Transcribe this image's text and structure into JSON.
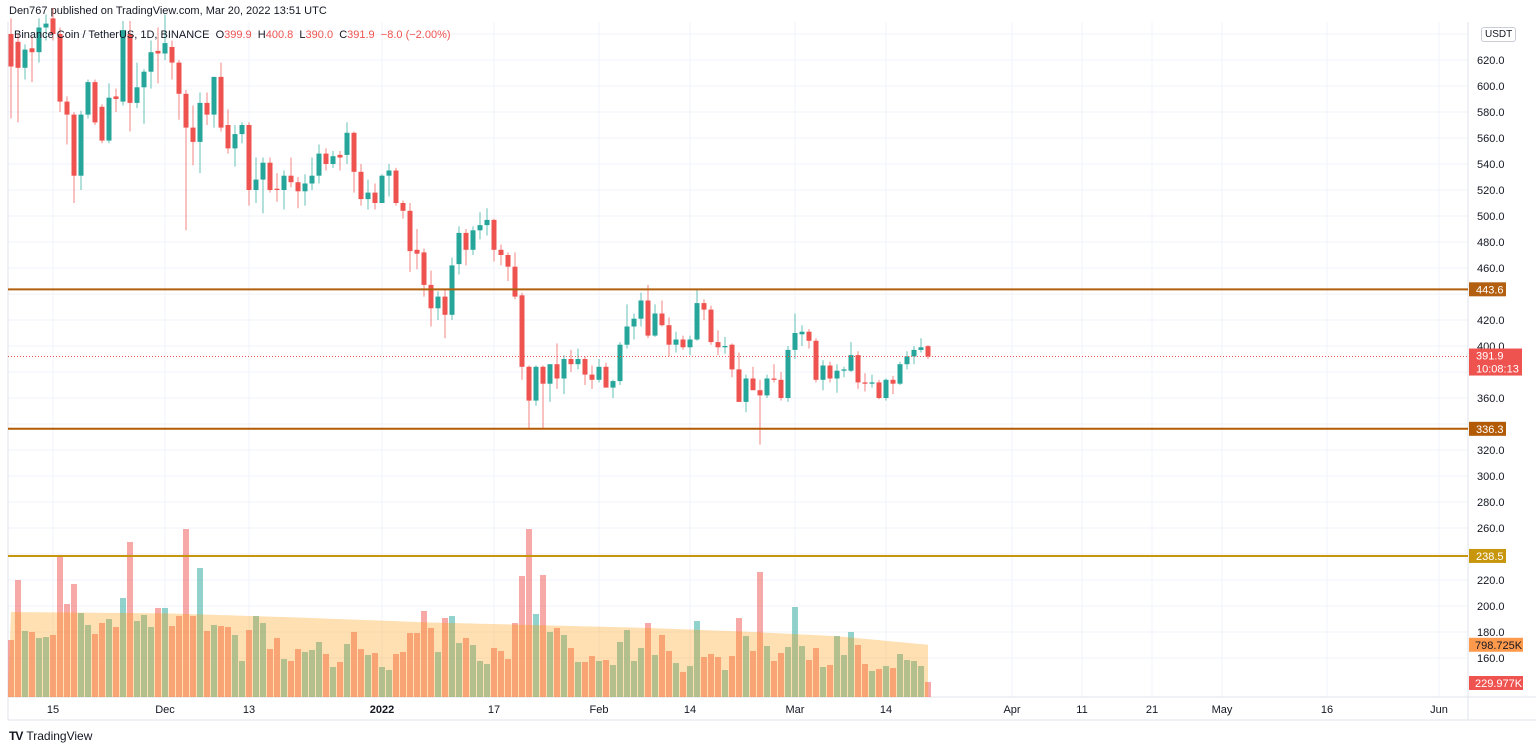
{
  "header": {
    "publisher_line": "Den767 published on TradingView.com, Mar 20, 2022 13:51 UTC",
    "symbol": "Binance Coin / TetherUS, 1D, BINANCE",
    "open_label": "O",
    "open": "399.9",
    "high_label": "H",
    "high": "400.8",
    "low_label": "L",
    "low": "390.0",
    "close_label": "C",
    "close": "391.9",
    "change": "−8.0 (−2.00%)"
  },
  "currency_badge": "USDT",
  "footer": {
    "brand": "TradingView",
    "logo": "TV"
  },
  "colors": {
    "up": "#26a69a",
    "down": "#ef5350",
    "level_443": "#b2600f",
    "level_336": "#b35a05",
    "level_238": "#c8960c",
    "volume_ma": "#ff9a4d"
  },
  "chart_data": {
    "type": "candlestick",
    "title": "Binance Coin / TetherUS, 1D, BINANCE",
    "first_date": "2021-11-09",
    "last_date": "2022-03-20",
    "ylim": [
      140,
      650
    ],
    "price_ticks": [
      "620.0",
      "600.0",
      "580.0",
      "560.0",
      "540.0",
      "520.0",
      "500.0",
      "480.0",
      "460.0",
      "420.0",
      "400.0",
      "360.0",
      "320.0",
      "300.0",
      "280.0",
      "260.0",
      "220.0",
      "200.0",
      "180.0",
      "160.0"
    ],
    "time_ticks": [
      {
        "label": "15",
        "day": 6
      },
      {
        "label": "Dec",
        "day": 22
      },
      {
        "label": "13",
        "day": 34
      },
      {
        "label": "2022",
        "day": 53,
        "bold": true
      },
      {
        "label": "17",
        "day": 69
      },
      {
        "label": "Feb",
        "day": 84
      },
      {
        "label": "14",
        "day": 97
      },
      {
        "label": "Mar",
        "day": 112
      },
      {
        "label": "14",
        "day": 125
      },
      {
        "label": "Apr",
        "day": 143
      },
      {
        "label": "11",
        "day": 153
      },
      {
        "label": "21",
        "day": 163
      },
      {
        "label": "May",
        "day": 173
      },
      {
        "label": "16",
        "day": 188
      },
      {
        "label": "Jun",
        "day": 204
      }
    ],
    "horizontal_levels": [
      {
        "label": "443.6",
        "price": 443.6,
        "color_key": "level_443"
      },
      {
        "label": "336.3",
        "price": 336.3,
        "color_key": "level_336"
      },
      {
        "label": "238.5",
        "price": 238.5,
        "color_key": "level_238"
      }
    ],
    "last_price": {
      "label": "391.9",
      "price": 391.9,
      "countdown": "10:08:13"
    },
    "volume_labels": {
      "ma": "798.725K",
      "last": "229.977K"
    },
    "ohlc": [
      [
        640,
        652,
        575,
        615
      ],
      [
        634,
        640,
        572,
        614
      ],
      [
        614,
        632,
        605,
        628
      ],
      [
        629,
        638,
        603,
        626
      ],
      [
        626,
        652,
        618,
        645
      ],
      [
        645,
        655,
        635,
        648
      ],
      [
        652,
        660,
        635,
        640
      ],
      [
        640,
        645,
        580,
        588
      ],
      [
        588,
        592,
        555,
        578
      ],
      [
        578,
        580,
        510,
        531
      ],
      [
        531,
        581,
        520,
        578
      ],
      [
        578,
        605,
        575,
        603
      ],
      [
        603,
        605,
        570,
        572
      ],
      [
        584,
        586,
        556,
        558
      ],
      [
        558,
        602,
        556,
        591
      ],
      [
        592,
        598,
        580,
        590
      ],
      [
        588,
        650,
        585,
        643
      ],
      [
        640,
        650,
        565,
        587
      ],
      [
        587,
        618,
        583,
        599
      ],
      [
        599,
        613,
        571,
        611
      ],
      [
        611,
        635,
        598,
        626
      ],
      [
        627,
        645,
        602,
        625
      ],
      [
        625,
        655,
        620,
        633
      ],
      [
        630,
        635,
        605,
        618
      ],
      [
        618,
        620,
        574,
        594
      ],
      [
        594,
        597,
        489,
        568
      ],
      [
        568,
        585,
        539,
        557
      ],
      [
        557,
        595,
        533,
        587
      ],
      [
        587,
        595,
        570,
        578
      ],
      [
        578,
        607,
        568,
        607
      ],
      [
        607,
        618,
        565,
        568
      ],
      [
        570,
        582,
        548,
        552
      ],
      [
        552,
        570,
        538,
        563
      ],
      [
        563,
        572,
        556,
        570
      ],
      [
        570,
        572,
        508,
        520
      ],
      [
        520,
        545,
        510,
        528
      ],
      [
        528,
        545,
        502,
        541
      ],
      [
        541,
        545,
        518,
        520
      ],
      [
        521,
        533,
        511,
        520
      ],
      [
        520,
        535,
        505,
        531
      ],
      [
        531,
        545,
        522,
        526
      ],
      [
        526,
        530,
        506,
        519
      ],
      [
        519,
        532,
        508,
        525
      ],
      [
        525,
        545,
        520,
        531
      ],
      [
        531,
        555,
        525,
        548
      ],
      [
        548,
        552,
        535,
        540
      ],
      [
        540,
        550,
        537,
        546
      ],
      [
        547,
        550,
        535,
        545
      ],
      [
        547,
        572,
        540,
        564
      ],
      [
        564,
        565,
        518,
        534
      ],
      [
        534,
        540,
        508,
        513
      ],
      [
        513,
        528,
        505,
        518
      ],
      [
        518,
        525,
        505,
        510
      ],
      [
        510,
        532,
        510,
        531
      ],
      [
        531,
        540,
        515,
        535
      ],
      [
        535,
        537,
        508,
        510
      ],
      [
        510,
        512,
        498,
        504
      ],
      [
        504,
        510,
        457,
        473
      ],
      [
        474,
        490,
        459,
        471
      ],
      [
        472,
        475,
        438,
        447
      ],
      [
        447,
        458,
        415,
        429
      ],
      [
        429,
        442,
        420,
        438
      ],
      [
        438,
        443,
        406,
        424
      ],
      [
        424,
        468,
        420,
        462
      ],
      [
        463,
        492,
        455,
        487
      ],
      [
        487,
        490,
        462,
        474
      ],
      [
        474,
        492,
        470,
        489
      ],
      [
        489,
        503,
        482,
        493
      ],
      [
        493,
        506,
        485,
        497
      ],
      [
        497,
        498,
        465,
        474
      ],
      [
        474,
        478,
        462,
        470
      ],
      [
        470,
        472,
        450,
        461
      ],
      [
        461,
        472,
        436,
        438
      ],
      [
        439,
        441,
        374,
        384
      ],
      [
        384,
        385,
        337,
        358
      ],
      [
        358,
        385,
        354,
        384
      ],
      [
        384,
        385,
        337,
        371
      ],
      [
        371,
        386,
        357,
        386
      ],
      [
        386,
        402,
        367,
        375
      ],
      [
        375,
        393,
        363,
        390
      ],
      [
        390,
        397,
        380,
        386
      ],
      [
        386,
        398,
        382,
        390
      ],
      [
        390,
        392,
        370,
        378
      ],
      [
        378,
        385,
        367,
        374
      ],
      [
        374,
        390,
        372,
        384
      ],
      [
        384,
        387,
        368,
        368
      ],
      [
        368,
        374,
        360,
        373
      ],
      [
        373,
        403,
        370,
        401
      ],
      [
        401,
        432,
        398,
        415
      ],
      [
        415,
        425,
        405,
        421
      ],
      [
        421,
        441,
        415,
        435
      ],
      [
        435,
        447,
        406,
        408
      ],
      [
        408,
        432,
        407,
        425
      ],
      [
        425,
        435,
        415,
        416
      ],
      [
        416,
        422,
        392,
        401
      ],
      [
        401,
        411,
        395,
        405
      ],
      [
        405,
        408,
        397,
        399
      ],
      [
        399,
        408,
        393,
        405
      ],
      [
        405,
        444,
        404,
        433
      ],
      [
        433,
        436,
        420,
        428
      ],
      [
        428,
        431,
        401,
        403
      ],
      [
        403,
        412,
        393,
        399
      ],
      [
        399,
        407,
        394,
        400
      ],
      [
        401,
        402,
        376,
        382
      ],
      [
        382,
        395,
        357,
        357
      ],
      [
        357,
        378,
        349,
        375
      ],
      [
        375,
        384,
        366,
        366
      ],
      [
        366,
        374,
        324,
        362
      ],
      [
        362,
        378,
        360,
        375
      ],
      [
        375,
        386,
        372,
        374
      ],
      [
        374,
        380,
        358,
        360
      ],
      [
        360,
        400,
        357,
        397
      ],
      [
        397,
        425,
        390,
        410
      ],
      [
        409,
        416,
        400,
        411
      ],
      [
        411,
        413,
        398,
        404
      ],
      [
        404,
        406,
        372,
        374
      ],
      [
        374,
        389,
        366,
        385
      ],
      [
        385,
        388,
        372,
        375
      ],
      [
        375,
        386,
        364,
        381
      ],
      [
        381,
        384,
        376,
        382
      ],
      [
        381,
        403,
        380,
        393
      ],
      [
        393,
        396,
        367,
        372
      ],
      [
        372,
        379,
        365,
        371
      ],
      [
        371,
        378,
        368,
        372
      ],
      [
        372,
        374,
        359,
        360
      ],
      [
        360,
        375,
        358,
        374
      ],
      [
        374,
        377,
        363,
        371
      ],
      [
        371,
        388,
        370,
        386
      ],
      [
        386,
        396,
        382,
        392
      ],
      [
        392,
        400,
        386,
        397
      ],
      [
        397,
        406,
        395,
        399
      ],
      [
        399.9,
        400.8,
        390,
        391.9
      ]
    ],
    "volume_k": [
      872,
      1790,
      1010,
      995,
      903,
      918,
      949,
      2173,
      1423,
      1729,
      1285,
      1102,
      964,
      1132,
      1193,
      1071,
      1515,
      2372,
      1163,
      1255,
      1071,
      1362,
      1362,
      1086,
      1239,
      2570,
      1239,
      1974,
      1010,
      1102,
      1086,
      1071,
      949,
      551,
      1025,
      1239,
      1132,
      734,
      903,
      581,
      551,
      734,
      689,
      719,
      842,
      658,
      459,
      536,
      811,
      995,
      734,
      643,
      673,
      459,
      413,
      658,
      689,
      979,
      979,
      1316,
      1056,
      689,
      1209,
      1239,
      826,
      903,
      796,
      551,
      505,
      750,
      704,
      581,
      1132,
      1851,
      2570,
      1270,
      1867,
      995,
      1056,
      949,
      750,
      536,
      536,
      627,
      551,
      566,
      490,
      842,
      1025,
      551,
      750,
      1132,
      643,
      949,
      704,
      520,
      383,
      474,
      1163,
      612,
      658,
      612,
      413,
      627,
      1209,
      933,
      704,
      1913,
      780,
      551,
      673,
      765,
      1377,
      780,
      566,
      750,
      459,
      490,
      933,
      643,
      995,
      796,
      505,
      398,
      428,
      474,
      444,
      658,
      566,
      551,
      474,
      230
    ],
    "volume_ma_points": [
      [
        0,
        1300
      ],
      [
        22,
        1280
      ],
      [
        40,
        1220
      ],
      [
        60,
        1140
      ],
      [
        75,
        1100
      ],
      [
        90,
        1060
      ],
      [
        105,
        1000
      ],
      [
        118,
        930
      ],
      [
        131,
        799
      ]
    ]
  }
}
